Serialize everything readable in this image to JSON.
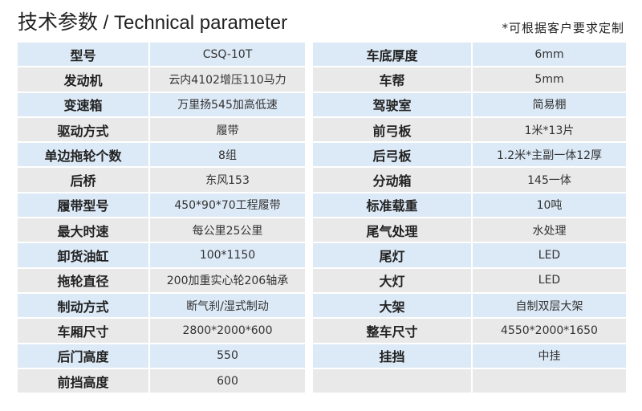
{
  "header": {
    "title_cn": "技术参数",
    "separator": " / ",
    "title_en": "Technical parameter",
    "note": "*可根据客户要求定制"
  },
  "colors": {
    "row_blue": "#dce9f6",
    "row_grey": "#e9e9e9"
  },
  "left": [
    {
      "label": "型号",
      "value": "CSQ-10T"
    },
    {
      "label": "发动机",
      "value": "云内4102增压110马力"
    },
    {
      "label": "变速箱",
      "value": "万里扬545加高低速"
    },
    {
      "label": "驱动方式",
      "value": "履带"
    },
    {
      "label": "单边拖轮个数",
      "value": "8组"
    },
    {
      "label": "后桥",
      "value": "东风153"
    },
    {
      "label": "履带型号",
      "value": "450*90*70工程履带"
    },
    {
      "label": "最大时速",
      "value": "每公里25公里"
    },
    {
      "label": "卸货油缸",
      "value": "100*1150"
    },
    {
      "label": "拖轮直径",
      "value": "200加重实心轮206轴承"
    },
    {
      "label": "制动方式",
      "value": "断气刹/湿式制动"
    },
    {
      "label": "车厢尺寸",
      "value": "2800*2000*600"
    },
    {
      "label": "后门高度",
      "value": "550"
    },
    {
      "label": "前挡高度",
      "value": "600"
    }
  ],
  "right": [
    {
      "label": "车底厚度",
      "value": "6mm"
    },
    {
      "label": "车帮",
      "value": "5mm"
    },
    {
      "label": "驾驶室",
      "value": "简易棚"
    },
    {
      "label": "前弓板",
      "value": "1米*13片"
    },
    {
      "label": "后弓板",
      "value": "1.2米*主副一体12厚"
    },
    {
      "label": "分动箱",
      "value": "145一体"
    },
    {
      "label": "标准载重",
      "value": "10吨"
    },
    {
      "label": "尾气处理",
      "value": "水处理"
    },
    {
      "label": "尾灯",
      "value": "LED"
    },
    {
      "label": "大灯",
      "value": "LED"
    },
    {
      "label": "大架",
      "value": "自制双层大架"
    },
    {
      "label": "整车尺寸",
      "value": "4550*2000*1650"
    },
    {
      "label": "挂挡",
      "value": "中挂"
    },
    {
      "label": "",
      "value": ""
    }
  ]
}
